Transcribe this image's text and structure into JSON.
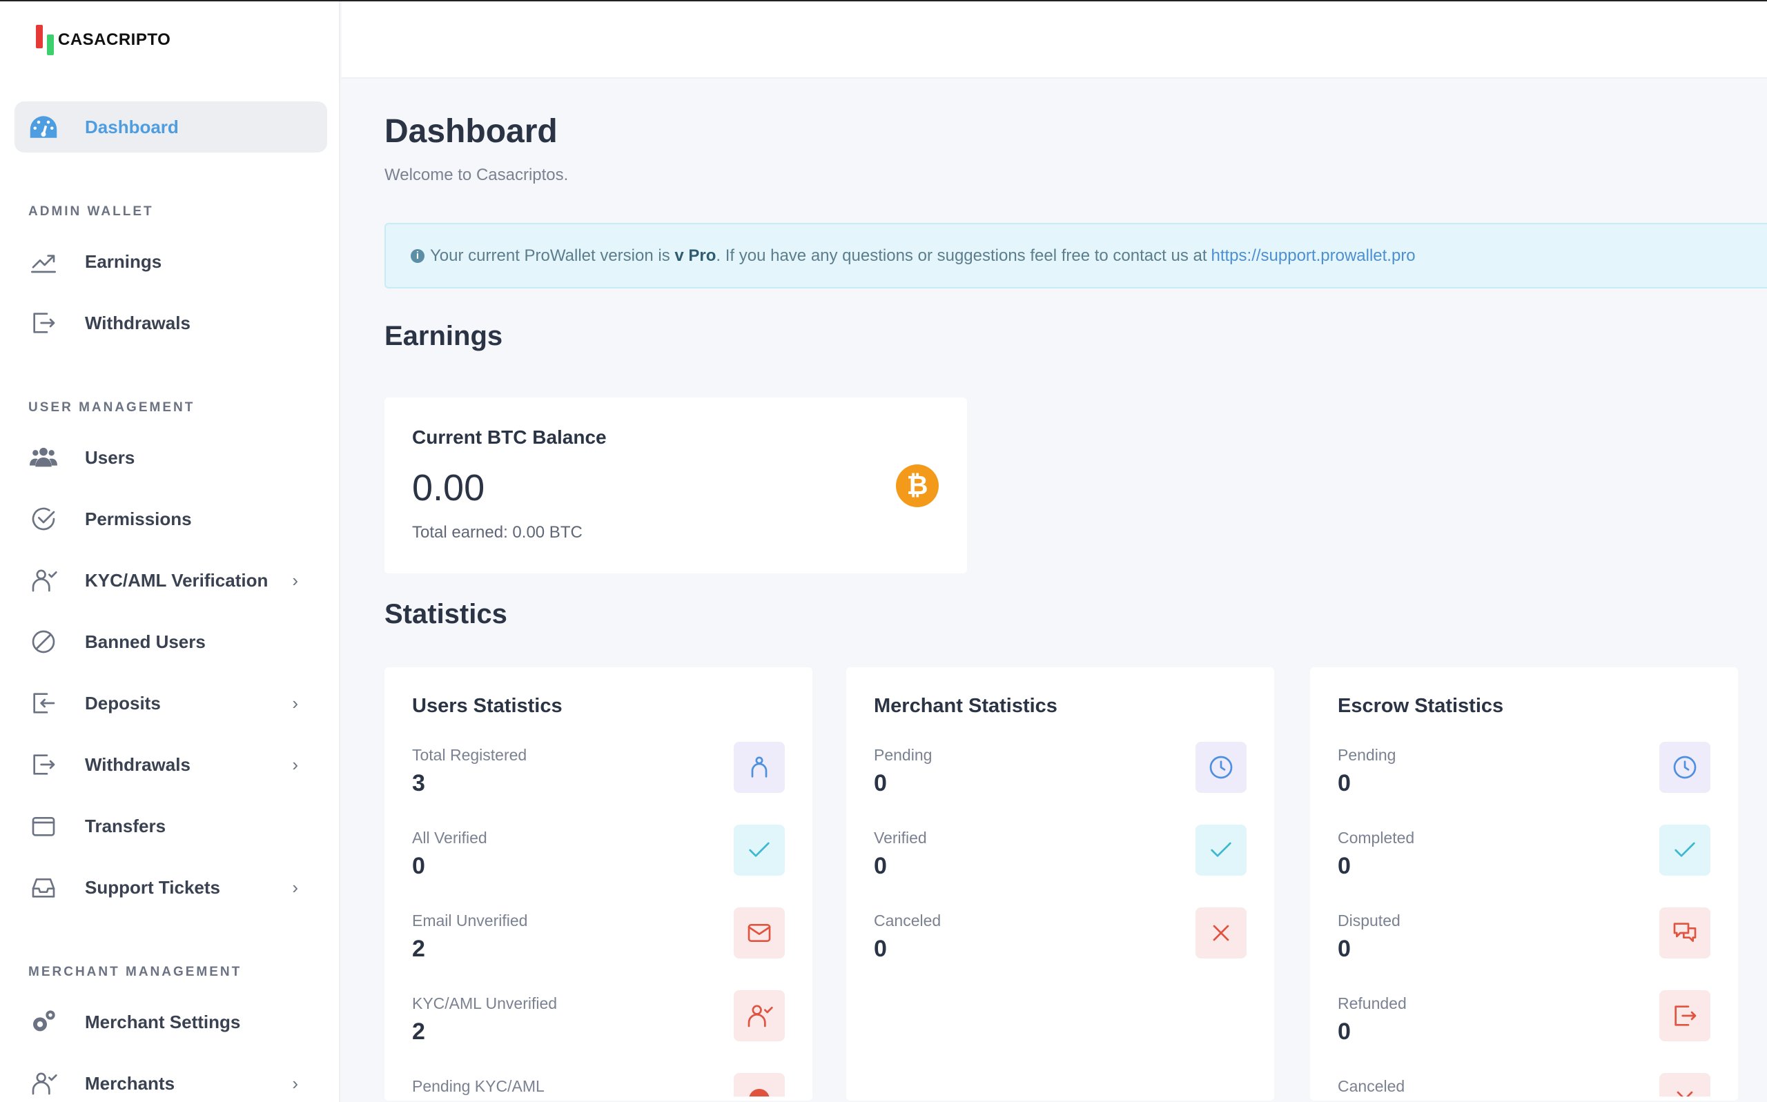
{
  "brand": {
    "name": "CASACRIPTO"
  },
  "sidebar": {
    "dashboard": {
      "label": "Dashboard",
      "icon": "dashboard-gauge-icon"
    },
    "sections": [
      {
        "title": "ADMIN WALLET",
        "items": [
          {
            "label": "Earnings",
            "icon": "chart-line-icon",
            "chevron": false
          },
          {
            "label": "Withdrawals",
            "icon": "export-icon",
            "chevron": false
          }
        ]
      },
      {
        "title": "USER MANAGEMENT",
        "items": [
          {
            "label": "Users",
            "icon": "users-icon",
            "chevron": false
          },
          {
            "label": "Permissions",
            "icon": "check-circle-icon",
            "chevron": false
          },
          {
            "label": "KYC/AML Verification",
            "icon": "user-check-icon",
            "chevron": true
          },
          {
            "label": "Banned Users",
            "icon": "ban-icon",
            "chevron": false
          },
          {
            "label": "Deposits",
            "icon": "import-icon",
            "chevron": true
          },
          {
            "label": "Withdrawals",
            "icon": "export-icon",
            "chevron": true
          },
          {
            "label": "Transfers",
            "icon": "wallet-icon",
            "chevron": false
          },
          {
            "label": "Support Tickets",
            "icon": "inbox-icon",
            "chevron": true
          }
        ]
      },
      {
        "title": "MERCHANT MANAGEMENT",
        "items": [
          {
            "label": "Merchant Settings",
            "icon": "gears-icon",
            "chevron": false
          },
          {
            "label": "Merchants",
            "icon": "user-check-icon",
            "chevron": true
          }
        ]
      }
    ]
  },
  "main": {
    "title": "Dashboard",
    "welcome": "Welcome to Casacriptos.",
    "alert": {
      "prefix": "Your current ProWallet version is",
      "version": "v Pro",
      "suffix": ". If you have any questions or suggestions feel free to contact us at",
      "link": "https://support.prowallet.pro"
    },
    "earnings": {
      "heading": "Earnings",
      "card_title": "Current BTC Balance",
      "balance": "0.00",
      "total": "Total earned: 0.00 BTC",
      "coin_symbol": "₿"
    },
    "statistics": {
      "heading": "Statistics",
      "cards": [
        {
          "title": "Users Statistics",
          "rows": [
            {
              "label": "Total Registered",
              "value": "3",
              "icon": "user-icon",
              "tone": "purple"
            },
            {
              "label": "All Verified",
              "value": "0",
              "icon": "check-icon",
              "tone": "cyan"
            },
            {
              "label": "Email Unverified",
              "value": "2",
              "icon": "mail-icon",
              "tone": "red"
            },
            {
              "label": "KYC/AML Unverified",
              "value": "2",
              "icon": "user-check-icon",
              "tone": "red"
            },
            {
              "label": "Pending KYC/AML",
              "value": "",
              "icon": "alert-icon",
              "tone": "red"
            }
          ]
        },
        {
          "title": "Merchant Statistics",
          "rows": [
            {
              "label": "Pending",
              "value": "0",
              "icon": "clock-icon",
              "tone": "purple"
            },
            {
              "label": "Verified",
              "value": "0",
              "icon": "check-icon",
              "tone": "cyan"
            },
            {
              "label": "Canceled",
              "value": "0",
              "icon": "x-icon",
              "tone": "red"
            }
          ]
        },
        {
          "title": "Escrow Statistics",
          "rows": [
            {
              "label": "Pending",
              "value": "0",
              "icon": "clock-icon",
              "tone": "purple"
            },
            {
              "label": "Completed",
              "value": "0",
              "icon": "check-icon",
              "tone": "cyan"
            },
            {
              "label": "Disputed",
              "value": "0",
              "icon": "chat-icon",
              "tone": "red"
            },
            {
              "label": "Refunded",
              "value": "0",
              "icon": "export-icon",
              "tone": "red"
            },
            {
              "label": "Canceled",
              "value": "",
              "icon": "x-icon",
              "tone": "red"
            }
          ]
        }
      ]
    }
  },
  "colors": {
    "accent": "#4d9de0",
    "bitcoin": "#f39a1b",
    "purple_bg": "#eeebfb",
    "cyan_bg": "#e0f6fa",
    "red_bg": "#fbe9e9",
    "purple_fg": "#4d8fe0",
    "cyan_fg": "#3cb8d0",
    "red_fg": "#e0533f"
  }
}
